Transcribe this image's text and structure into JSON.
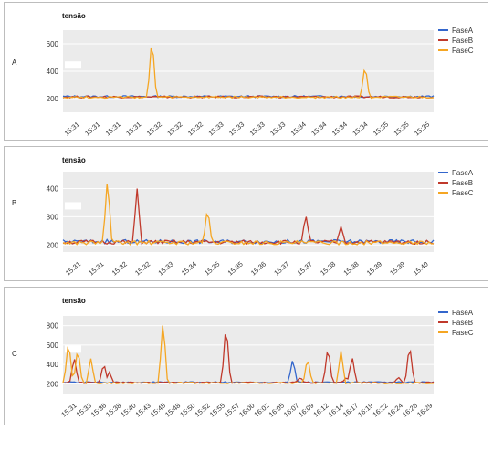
{
  "colors": {
    "FaseA": "#3366cc",
    "FaseB": "#c0392b",
    "FaseC": "#f5a623",
    "plot_bg": "#ebebeb",
    "grid": "#ffffff"
  },
  "chart_data": [
    {
      "panel_label": "A",
      "type": "line",
      "title": "tensão",
      "xlabel": "",
      "ylabel": "",
      "legend_position": "right",
      "grid": true,
      "ylim": [
        100,
        700
      ],
      "yticks": [
        200,
        400,
        600
      ],
      "x_tick_labels": [
        "15:31",
        "15:31",
        "15:31",
        "15:31",
        "15:32",
        "15:32",
        "15:32",
        "15:33",
        "15:33",
        "15:33",
        "15:33",
        "15:34",
        "15:34",
        "15:34",
        "15:34",
        "15:35",
        "15:35",
        "15:35"
      ],
      "series": [
        {
          "name": "FaseA",
          "baseline": 215,
          "spikes": []
        },
        {
          "name": "FaseB",
          "baseline": 212,
          "spikes": []
        },
        {
          "name": "FaseC",
          "baseline": 210,
          "spikes": [
            {
              "pos": 0.24,
              "value": 660
            },
            {
              "pos": 0.815,
              "value": 455
            }
          ]
        }
      ]
    },
    {
      "panel_label": "B",
      "type": "line",
      "title": "tensão",
      "xlabel": "",
      "ylabel": "",
      "legend_position": "right",
      "grid": true,
      "ylim": [
        175,
        460
      ],
      "yticks": [
        200,
        300,
        400
      ],
      "x_tick_labels": [
        "15:31",
        "15:31",
        "15:32",
        "15:32",
        "15:33",
        "15:34",
        "15:35",
        "15:35",
        "15:36",
        "15:37",
        "15:37",
        "15:38",
        "15:38",
        "15:39",
        "15:39",
        "15:40"
      ],
      "series": [
        {
          "name": "FaseA",
          "baseline": 212,
          "spikes": []
        },
        {
          "name": "FaseB",
          "baseline": 210,
          "spikes": [
            {
              "pos": 0.2,
              "value": 400
            },
            {
              "pos": 0.655,
              "value": 310
            },
            {
              "pos": 0.75,
              "value": 265
            }
          ]
        },
        {
          "name": "FaseC",
          "baseline": 208,
          "spikes": [
            {
              "pos": 0.12,
              "value": 440
            },
            {
              "pos": 0.39,
              "value": 335
            }
          ]
        }
      ]
    },
    {
      "panel_label": "C",
      "type": "line",
      "title": "tensão",
      "xlabel": "",
      "ylabel": "",
      "legend_position": "right",
      "grid": true,
      "ylim": [
        100,
        900
      ],
      "yticks": [
        200,
        400,
        600,
        800
      ],
      "x_tick_labels": [
        "15:31",
        "15:33",
        "15:36",
        "15:38",
        "15:40",
        "15:43",
        "15:45",
        "15:48",
        "15:50",
        "15:52",
        "15:55",
        "15:57",
        "16:00",
        "16:02",
        "16:05",
        "16:07",
        "16:09",
        "16:12",
        "16:14",
        "16:17",
        "16:19",
        "16:22",
        "16:24",
        "16:26",
        "16:29"
      ],
      "series": [
        {
          "name": "FaseA",
          "baseline": 215,
          "spikes": [
            {
              "pos": 0.62,
              "value": 460
            }
          ]
        },
        {
          "name": "FaseB",
          "baseline": 212,
          "spikes": [
            {
              "pos": 0.03,
              "value": 480
            },
            {
              "pos": 0.11,
              "value": 420
            },
            {
              "pos": 0.125,
              "value": 320
            },
            {
              "pos": 0.44,
              "value": 840
            },
            {
              "pos": 0.64,
              "value": 270
            },
            {
              "pos": 0.715,
              "value": 600
            },
            {
              "pos": 0.765,
              "value": 270
            },
            {
              "pos": 0.78,
              "value": 490
            },
            {
              "pos": 0.905,
              "value": 270
            },
            {
              "pos": 0.935,
              "value": 620
            }
          ]
        },
        {
          "name": "FaseC",
          "baseline": 208,
          "spikes": [
            {
              "pos": 0.015,
              "value": 660
            },
            {
              "pos": 0.04,
              "value": 580
            },
            {
              "pos": 0.075,
              "value": 460
            },
            {
              "pos": 0.27,
              "value": 870
            },
            {
              "pos": 0.66,
              "value": 480
            },
            {
              "pos": 0.75,
              "value": 540
            }
          ]
        }
      ]
    }
  ]
}
